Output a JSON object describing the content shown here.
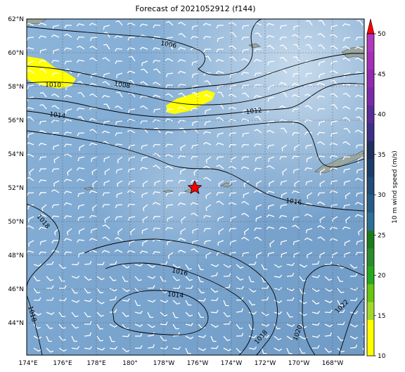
{
  "title": "Forecast of 2021052912 (f144)",
  "map": {
    "lat_ticks": [
      "62°N",
      "60°N",
      "58°N",
      "56°N",
      "54°N",
      "52°N",
      "50°N",
      "48°N",
      "46°N",
      "44°N"
    ],
    "lon_ticks": [
      "174°E",
      "176°E",
      "178°E",
      "180°",
      "178°W",
      "176°W",
      "174°W",
      "172°W",
      "170°W",
      "168°W"
    ],
    "contours": [
      {
        "label": "1006"
      },
      {
        "label": "1008"
      },
      {
        "label": "1010"
      },
      {
        "label": "1012"
      },
      {
        "label": "1014"
      },
      {
        "label": "1016"
      },
      {
        "label": "1016"
      },
      {
        "label": "1018"
      },
      {
        "label": "1018"
      },
      {
        "label": "1014"
      },
      {
        "label": "1018"
      },
      {
        "label": "1020"
      },
      {
        "label": "1022"
      }
    ],
    "marker": {
      "name": "red-star-marker",
      "color": "#ff0000"
    },
    "colors": {
      "ocean": "#7ba7d1",
      "land": "#9aa6a0",
      "highlight": "#ffff00",
      "grid": "#555555"
    }
  },
  "colorbar": {
    "label": "10 m wind speed (m/s)",
    "ticks": [
      "10",
      "15",
      "20",
      "25",
      "30",
      "35",
      "40",
      "45",
      "50"
    ],
    "segments": [
      "#ffff00",
      "#ffff00",
      "#a3d82a",
      "#69c413",
      "#28a81e",
      "#2b8c2e",
      "#1a7b1b",
      "#2e6e96",
      "#265b86",
      "#204c77",
      "#1b3c6a",
      "#1f2f5e",
      "#3c2f86",
      "#5a2c97",
      "#7a2aa8",
      "#922ab0",
      "#a62eb8",
      "#b238bd"
    ],
    "extend_color": "#ff0000"
  }
}
